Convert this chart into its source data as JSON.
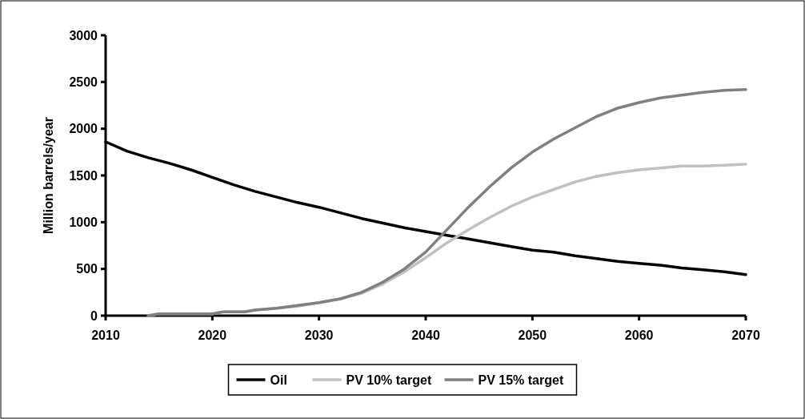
{
  "chart_data": {
    "type": "line",
    "ylabel": "Million barrels/year",
    "xlim": [
      2010,
      2070
    ],
    "xticks": [
      2010,
      2020,
      2030,
      2040,
      2050,
      2060,
      2070
    ],
    "ylim": [
      0,
      3000
    ],
    "yticks": [
      0,
      500,
      1000,
      1500,
      2000,
      2500,
      3000
    ],
    "grid": false,
    "legend": "bottom",
    "marker": "none",
    "line_style": "solid",
    "series": [
      {
        "name": "Oil",
        "color": "#000000",
        "x": [
          2010,
          2012,
          2014,
          2016,
          2018,
          2020,
          2022,
          2024,
          2026,
          2028,
          2030,
          2032,
          2034,
          2036,
          2038,
          2040,
          2042,
          2044,
          2046,
          2048,
          2050,
          2052,
          2054,
          2056,
          2058,
          2060,
          2062,
          2064,
          2066,
          2068,
          2070
        ],
        "values": [
          1860,
          1760,
          1690,
          1630,
          1560,
          1480,
          1400,
          1330,
          1270,
          1210,
          1160,
          1100,
          1040,
          990,
          940,
          900,
          860,
          820,
          780,
          740,
          700,
          680,
          640,
          610,
          580,
          560,
          540,
          510,
          490,
          470,
          440
        ]
      },
      {
        "name": "PV 10% target",
        "color": "#c0c0c0",
        "x": [
          2014,
          2015,
          2020,
          2021,
          2023,
          2024,
          2026,
          2028,
          2030,
          2032,
          2034,
          2036,
          2038,
          2040,
          2042,
          2044,
          2046,
          2048,
          2050,
          2052,
          2054,
          2056,
          2058,
          2060,
          2062,
          2064,
          2066,
          2068,
          2070
        ],
        "values": [
          0,
          20,
          20,
          40,
          40,
          60,
          80,
          100,
          140,
          180,
          240,
          340,
          470,
          620,
          780,
          920,
          1050,
          1170,
          1270,
          1350,
          1430,
          1490,
          1530,
          1560,
          1580,
          1600,
          1600,
          1610,
          1620
        ]
      },
      {
        "name": "PV 15% target",
        "color": "#808080",
        "x": [
          2014,
          2015,
          2020,
          2021,
          2023,
          2024,
          2026,
          2028,
          2030,
          2032,
          2034,
          2036,
          2038,
          2040,
          2042,
          2044,
          2046,
          2048,
          2050,
          2052,
          2054,
          2056,
          2058,
          2060,
          2062,
          2064,
          2066,
          2068,
          2070
        ],
        "values": [
          0,
          20,
          20,
          40,
          40,
          60,
          80,
          110,
          140,
          180,
          250,
          360,
          500,
          680,
          920,
          1160,
          1380,
          1580,
          1750,
          1890,
          2010,
          2130,
          2220,
          2280,
          2330,
          2360,
          2390,
          2410,
          2420
        ]
      }
    ]
  }
}
